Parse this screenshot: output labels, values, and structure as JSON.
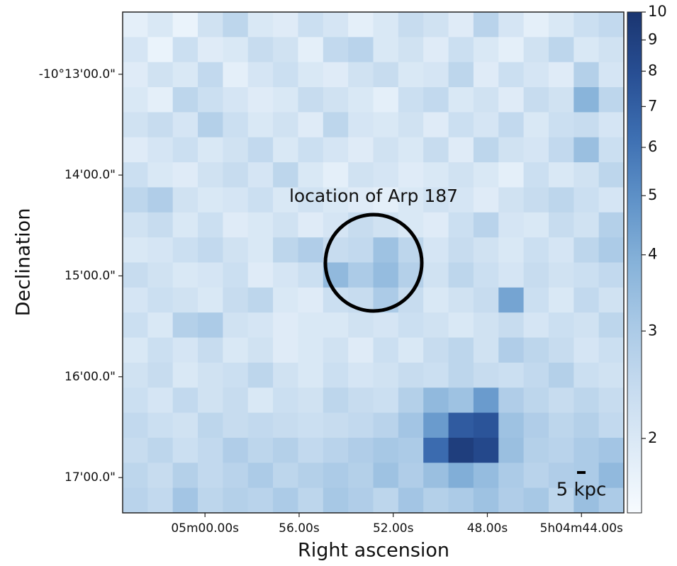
{
  "chart_data": {
    "type": "heatmap",
    "xlabel": "Right ascension",
    "ylabel": "Declination",
    "annotation": "location of Arp 187",
    "scale_label": "5 kpc",
    "xlim": [
      303.5,
      282.2
    ],
    "xticks": [
      {
        "value": 300,
        "label": "05m00.00s"
      },
      {
        "value": 296,
        "label": "56.00s"
      },
      {
        "value": 292,
        "label": "52.00s"
      },
      {
        "value": 288,
        "label": "48.00s"
      },
      {
        "value": 284,
        "label": "5h04m44.00s"
      }
    ],
    "ylim": [
      743,
      1041
    ],
    "yticks": [
      {
        "value": 780,
        "label": "-10°13'00.0\""
      },
      {
        "value": 840,
        "label": "14'00.0\""
      },
      {
        "value": 900,
        "label": "15'00.0\""
      },
      {
        "value": 960,
        "label": "16'00.0\""
      },
      {
        "value": 1020,
        "label": "17'00.0\""
      }
    ],
    "zlim": [
      1.51,
      10
    ],
    "zscale": "log",
    "zticks": [
      2,
      3,
      4,
      5,
      6,
      7,
      8,
      9,
      10
    ],
    "colors": [
      "#f7fbff",
      "#deebf7",
      "#c6dbef",
      "#a9c9e6",
      "#86b2d9",
      "#5f92c8",
      "#3d6fb2",
      "#284f94",
      "#1a3570"
    ],
    "z": [
      [
        1.8,
        2.0,
        1.7,
        2.2,
        2.6,
        2.0,
        1.9,
        2.3,
        2.1,
        1.8,
        2.0,
        2.4,
        2.2,
        1.9,
        2.7,
        2.1,
        1.8,
        2.0,
        2.3,
        2.5
      ],
      [
        2.1,
        1.7,
        2.3,
        1.9,
        2.0,
        2.4,
        2.2,
        1.8,
        2.5,
        2.7,
        2.0,
        2.2,
        1.9,
        2.3,
        2.0,
        1.8,
        2.2,
        2.6,
        2.0,
        2.2
      ],
      [
        1.9,
        2.2,
        2.0,
        2.5,
        1.8,
        2.1,
        2.3,
        2.0,
        1.9,
        2.2,
        2.4,
        2.0,
        2.1,
        2.6,
        1.9,
        2.3,
        2.1,
        1.9,
        2.8,
        2.1
      ],
      [
        2.0,
        1.8,
        2.6,
        2.3,
        2.1,
        1.9,
        2.0,
        2.4,
        2.2,
        2.0,
        1.8,
        2.3,
        2.5,
        2.0,
        2.2,
        1.9,
        2.4,
        2.2,
        3.8,
        2.6
      ],
      [
        2.2,
        2.4,
        2.1,
        2.8,
        2.3,
        2.0,
        2.2,
        1.9,
        2.6,
        2.1,
        2.0,
        2.2,
        1.9,
        2.3,
        2.1,
        2.5,
        2.0,
        2.3,
        2.4,
        2.1
      ],
      [
        1.9,
        2.1,
        2.3,
        2.0,
        2.2,
        2.5,
        2.0,
        2.3,
        2.1,
        1.9,
        2.2,
        2.0,
        2.4,
        1.9,
        2.6,
        2.2,
        2.1,
        2.5,
        3.4,
        2.3
      ],
      [
        2.3,
        2.0,
        1.9,
        2.2,
        2.4,
        2.1,
        2.6,
        2.0,
        1.8,
        2.2,
        2.1,
        1.9,
        2.0,
        2.2,
        2.0,
        1.8,
        2.3,
        2.0,
        2.2,
        2.6
      ],
      [
        2.6,
        2.9,
        2.2,
        2.0,
        2.1,
        2.3,
        2.0,
        2.2,
        2.0,
        1.9,
        1.8,
        2.0,
        2.2,
        2.1,
        1.9,
        2.2,
        2.4,
        2.6,
        2.3,
        2.1
      ],
      [
        2.2,
        2.4,
        2.0,
        2.3,
        1.9,
        2.0,
        2.2,
        1.9,
        2.1,
        2.4,
        2.2,
        2.0,
        1.9,
        2.3,
        2.7,
        2.1,
        2.0,
        2.4,
        2.2,
        2.8
      ],
      [
        2.0,
        2.1,
        2.3,
        2.5,
        2.2,
        2.0,
        2.6,
        2.9,
        2.4,
        2.5,
        3.3,
        2.6,
        2.1,
        2.4,
        2.2,
        2.0,
        2.3,
        2.1,
        2.6,
        3.0
      ],
      [
        2.4,
        2.2,
        2.0,
        2.1,
        2.3,
        1.9,
        2.1,
        2.3,
        3.6,
        3.0,
        3.5,
        2.8,
        2.2,
        2.6,
        2.3,
        2.1,
        2.4,
        2.2,
        2.3,
        2.5
      ],
      [
        2.1,
        2.3,
        2.2,
        2.0,
        2.4,
        2.6,
        2.0,
        1.9,
        2.3,
        2.4,
        3.0,
        2.4,
        2.0,
        2.2,
        2.4,
        4.3,
        2.3,
        2.0,
        2.5,
        2.2
      ],
      [
        2.3,
        2.0,
        2.8,
        3.0,
        2.2,
        2.1,
        1.9,
        2.0,
        2.0,
        2.2,
        2.1,
        2.3,
        2.2,
        2.0,
        2.2,
        2.4,
        2.1,
        2.3,
        2.2,
        2.6
      ],
      [
        2.0,
        2.3,
        2.1,
        2.4,
        2.0,
        2.2,
        1.9,
        2.0,
        2.2,
        1.9,
        2.3,
        2.0,
        2.4,
        2.6,
        2.2,
        2.9,
        2.6,
        2.4,
        2.1,
        2.3
      ],
      [
        2.2,
        2.4,
        2.0,
        2.2,
        2.3,
        2.6,
        2.2,
        2.0,
        2.3,
        2.1,
        2.2,
        2.4,
        2.3,
        2.6,
        2.4,
        2.3,
        2.5,
        2.8,
        2.3,
        2.2
      ],
      [
        2.3,
        2.1,
        2.5,
        2.2,
        2.4,
        2.0,
        2.3,
        2.2,
        2.6,
        2.4,
        2.3,
        2.8,
        3.6,
        3.3,
        4.6,
        2.9,
        2.6,
        2.4,
        2.6,
        2.4
      ],
      [
        2.5,
        2.3,
        2.2,
        2.6,
        2.4,
        2.5,
        2.4,
        2.3,
        2.4,
        2.5,
        2.7,
        3.2,
        4.6,
        7.2,
        7.6,
        3.3,
        2.9,
        2.6,
        2.8,
        2.5
      ],
      [
        2.4,
        2.6,
        2.3,
        2.5,
        2.9,
        2.6,
        2.8,
        2.5,
        2.7,
        2.9,
        3.1,
        3.0,
        6.4,
        9.2,
        8.4,
        3.4,
        2.8,
        2.7,
        3.0,
        3.2
      ],
      [
        2.6,
        2.4,
        2.8,
        2.5,
        2.7,
        3.0,
        2.6,
        2.8,
        3.0,
        2.8,
        3.3,
        2.9,
        3.4,
        4.0,
        3.5,
        3.0,
        2.7,
        2.9,
        3.0,
        3.6
      ],
      [
        2.7,
        2.5,
        3.2,
        2.6,
        2.8,
        2.7,
        3.0,
        2.6,
        3.1,
        2.9,
        2.6,
        3.2,
        2.8,
        3.0,
        3.3,
        2.9,
        3.1,
        2.6,
        3.4,
        3.0
      ]
    ]
  }
}
